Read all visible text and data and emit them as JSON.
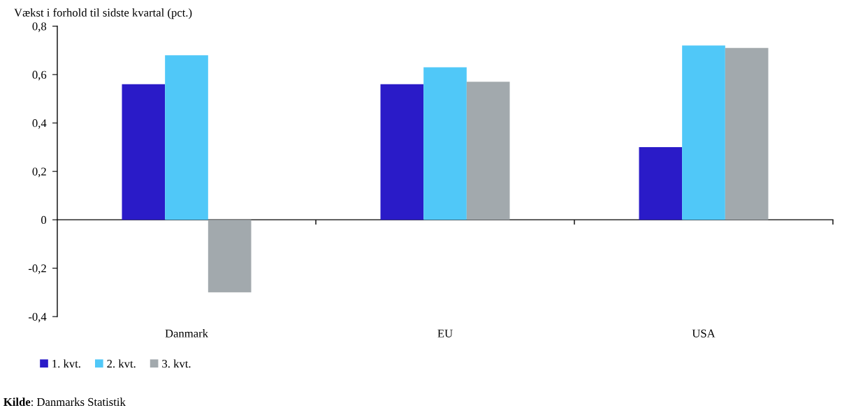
{
  "chart_data": {
    "type": "bar",
    "ylabel": "Vækst i forhold til sidste kvartal (pct.)",
    "categories": [
      "Danmark",
      "EU",
      "USA"
    ],
    "series": [
      {
        "name": "1. kvt.",
        "color": "#2a1bc8",
        "values": [
          0.56,
          0.56,
          0.3
        ]
      },
      {
        "name": "2. kvt.",
        "color": "#50c8f8",
        "values": [
          0.68,
          0.63,
          0.72
        ]
      },
      {
        "name": "3. kvt.",
        "color": "#a2a9ad",
        "values": [
          -0.3,
          0.57,
          0.71
        ]
      }
    ],
    "ylim": [
      -0.4,
      0.8
    ],
    "yticks": [
      {
        "value": -0.4,
        "label": "-0,4"
      },
      {
        "value": -0.2,
        "label": "-0,2"
      },
      0,
      {
        "value": 0.2,
        "label": "0,2"
      },
      {
        "value": 0.4,
        "label": "0,4"
      },
      {
        "value": 0.6,
        "label": "0,6"
      },
      {
        "value": 0.8,
        "label": "0,8"
      }
    ],
    "legend": "bottom left",
    "annotations": [
      "Kilde: Danmarks Statistik"
    ]
  }
}
